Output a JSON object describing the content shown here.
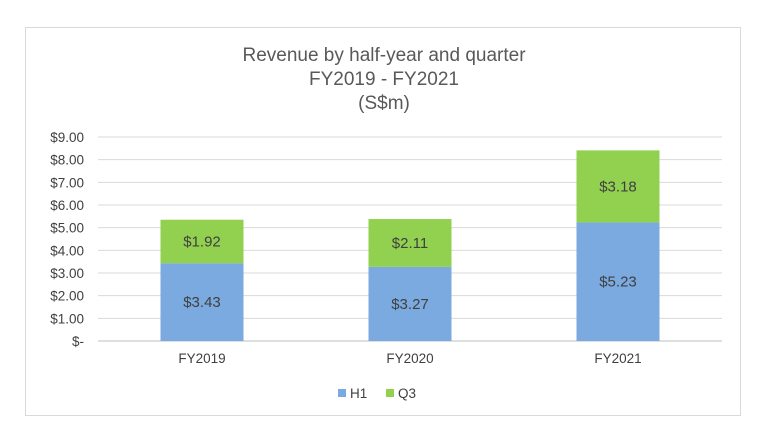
{
  "chart_data": {
    "type": "bar",
    "stacked": true,
    "title": "Revenue by half-year and quarter",
    "subtitle": "FY2019 - FY2021",
    "subtitle2": "(S$m)",
    "categories": [
      "FY2019",
      "FY2020",
      "FY2021"
    ],
    "series": [
      {
        "name": "H1",
        "color": "#7aaadf",
        "values": [
          3.43,
          3.27,
          5.23
        ],
        "labels": [
          "$3.43",
          "$3.27",
          "$5.23"
        ]
      },
      {
        "name": "Q3",
        "color": "#92d050",
        "values": [
          1.92,
          2.11,
          3.18
        ],
        "labels": [
          "$1.92",
          "$2.11",
          "$3.18"
        ]
      }
    ],
    "ylim": [
      0,
      9
    ],
    "yticks": [
      0,
      1,
      2,
      3,
      4,
      5,
      6,
      7,
      8,
      9
    ],
    "ytick_labels": [
      "$-",
      "$1.00",
      "$2.00",
      "$3.00",
      "$4.00",
      "$5.00",
      "$6.00",
      "$7.00",
      "$8.00",
      "$9.00"
    ],
    "xlabel": "",
    "ylabel": "",
    "grid": true,
    "legend": "bottom"
  }
}
